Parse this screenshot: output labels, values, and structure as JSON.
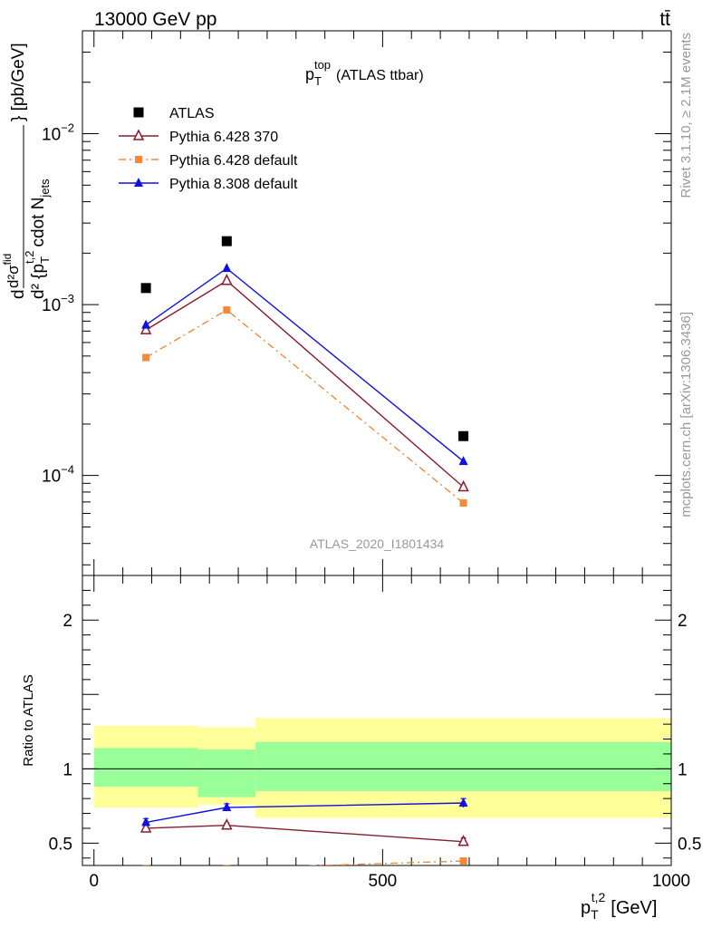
{
  "header": {
    "left": "13000 GeV pp",
    "right": "tt̄"
  },
  "side_labels": {
    "rivet": "Rivet 3.1.10, ≥ 2.1M events",
    "mcplots": "mcplots.cern.ch [arXiv:1306.3436]"
  },
  "chart_data": [
    {
      "type": "scatter",
      "panel": "main",
      "title": "p_T^top (ATLAS ttbar)",
      "title_parts": {
        "base": "p",
        "sub": "T",
        "sup": "top",
        "rest": "(ATLAS ttbar)"
      },
      "watermark": "ATLAS_2020_I1801434",
      "ylabel": "d²σ^fid / d² {p_T^t,2 cdot N_jets} [pb/GeV]",
      "ylabel_parts": {
        "numerator": "d²σ",
        "numerator_sup": "fid",
        "denominator": "d² {p",
        "denominator_sub": "T",
        "denominator_sup": "t,2",
        "denominator_rest": "cdot N",
        "jets_sub": "jets",
        "unit": "} [pb/GeV]",
        "left_d": "d"
      },
      "y_scale": "log",
      "ylim": [
        2.6e-05,
        0.04
      ],
      "xlim": [
        -20,
        1000
      ],
      "y_ticks": [
        {
          "value": 0.0001,
          "base": "10",
          "exp": "−4"
        },
        {
          "value": 0.001,
          "base": "10",
          "exp": "−3"
        },
        {
          "value": 0.01,
          "base": "10",
          "exp": "−2"
        }
      ],
      "legend_position": "top-left",
      "x": [
        90,
        230,
        640
      ],
      "series": [
        {
          "name": "ATLAS",
          "marker": "filled-square",
          "color": "#000000",
          "line": "none",
          "values": [
            0.00125,
            0.00235,
            0.00017
          ]
        },
        {
          "name": "Pythia 6.428 370",
          "marker": "open-triangle",
          "color": "#8b1a2b",
          "line": "solid",
          "values": [
            0.00071,
            0.00138,
            8.55e-05
          ]
        },
        {
          "name": "Pythia 6.428 default",
          "marker": "filled-small-square",
          "color": "#f5893a",
          "line": "dash-dot",
          "values": [
            0.00049,
            0.00093,
            6.9e-05
          ]
        },
        {
          "name": "Pythia 8.308 default",
          "marker": "filled-triangle",
          "color": "#1010e0",
          "line": "solid",
          "values": [
            0.00076,
            0.00163,
            0.000121
          ]
        }
      ]
    },
    {
      "type": "scatter",
      "panel": "ratio",
      "ylabel": "Ratio to ATLAS",
      "xlabel": "p_T^t,2 [GeV]",
      "xlabel_parts": {
        "base": "p",
        "sub": "T",
        "sup": "t,2",
        "rest": "[GeV]"
      },
      "ylim": [
        0.35,
        2.3
      ],
      "xlim": [
        -20,
        1000
      ],
      "x_ticks": [
        "0",
        "500",
        "1000"
      ],
      "x_tick_values": [
        0,
        500,
        1000
      ],
      "y_ticks": [
        "0.5",
        "1",
        "2"
      ],
      "y_tick_values": [
        0.5,
        1,
        2
      ],
      "bands": [
        {
          "x_low": 0,
          "x_high": 180,
          "yellow": [
            0.74,
            1.29
          ],
          "green": [
            0.88,
            1.14
          ]
        },
        {
          "x_low": 180,
          "x_high": 280,
          "yellow": [
            0.76,
            1.28
          ],
          "green": [
            0.81,
            1.13
          ]
        },
        {
          "x_low": 280,
          "x_high": 1000,
          "yellow": [
            0.67,
            1.34
          ],
          "green": [
            0.85,
            1.18
          ]
        }
      ],
      "x": [
        90,
        230,
        640
      ],
      "series": [
        {
          "name": "Pythia 6.428 370",
          "marker": "open-triangle",
          "color": "#8b1a2b",
          "line": "solid",
          "values": [
            0.6,
            0.62,
            0.51
          ],
          "errors": [
            0.01,
            0.015,
            0.025
          ]
        },
        {
          "name": "Pythia 6.428 default",
          "marker": "filled-small-square",
          "color": "#f5893a",
          "line": "dash-dot",
          "values": [
            0.33,
            0.33,
            0.38
          ],
          "errors": [
            0.01,
            0.01,
            0.02
          ]
        },
        {
          "name": "Pythia 8.308 default",
          "marker": "filled-triangle",
          "color": "#1010e0",
          "line": "solid",
          "values": [
            0.64,
            0.74,
            0.77
          ],
          "errors": [
            0.025,
            0.025,
            0.03
          ]
        }
      ]
    }
  ]
}
